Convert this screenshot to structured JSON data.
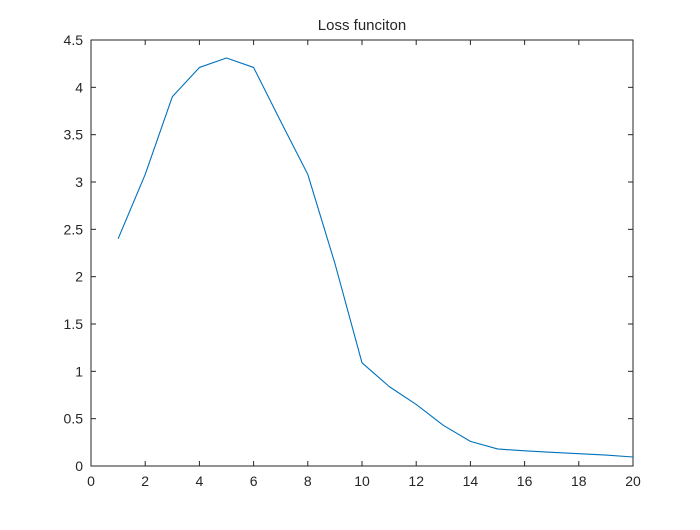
{
  "chart_data": {
    "type": "line",
    "title": "Loss funciton",
    "xlabel": "",
    "ylabel": "",
    "xlim": [
      0,
      20
    ],
    "ylim": [
      0,
      4.5
    ],
    "x_ticks": [
      0,
      2,
      4,
      6,
      8,
      10,
      12,
      14,
      16,
      18,
      20
    ],
    "y_ticks": [
      0,
      0.5,
      1,
      1.5,
      2,
      2.5,
      3,
      3.5,
      4,
      4.5
    ],
    "x_tick_labels": [
      "0",
      "2",
      "4",
      "6",
      "8",
      "10",
      "12",
      "14",
      "16",
      "18",
      "20"
    ],
    "y_tick_labels": [
      "0",
      "0.5",
      "1",
      "1.5",
      "2",
      "2.5",
      "3",
      "3.5",
      "4",
      "4.5"
    ],
    "grid": false,
    "series": [
      {
        "color": "#0072bd",
        "x": [
          1,
          2,
          3,
          4,
          5,
          6,
          7,
          8,
          9,
          10,
          11,
          12,
          13,
          14,
          15,
          16,
          17,
          18,
          19,
          20
        ],
        "y": [
          2.4,
          3.08,
          3.9,
          4.21,
          4.31,
          4.21,
          3.64,
          3.08,
          2.14,
          1.09,
          0.84,
          0.65,
          0.43,
          0.26,
          0.18,
          0.16,
          0.145,
          0.13,
          0.115,
          0.095
        ]
      }
    ]
  }
}
